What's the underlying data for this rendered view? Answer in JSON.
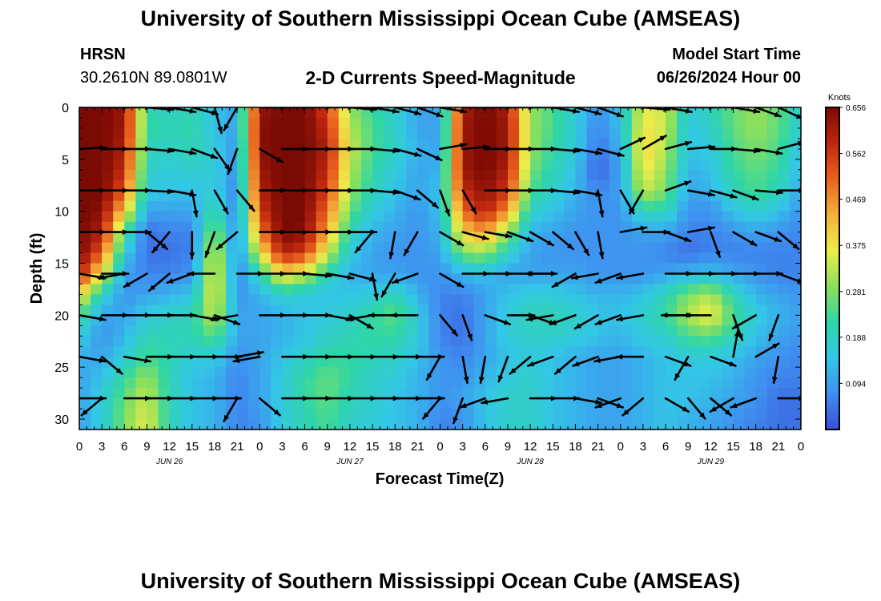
{
  "page_title": "University of Southern Mississippi Ocean Cube (AMSEAS)",
  "station": {
    "name": "HRSN",
    "coords": "30.2610N  89.0801W"
  },
  "plot_title": "2-D Currents Speed-Magnitude",
  "model": {
    "label": "Model Start Time",
    "start": "06/26/2024 Hour 00"
  },
  "footer_title": "University of Southern Mississippi Ocean Cube (AMSEAS)",
  "colors": {
    "speed_scale": [
      "#3a4fd8",
      "#3f8ff0",
      "#33c7e6",
      "#2fd6a6",
      "#8de05a",
      "#ecec4a",
      "#f4b23c",
      "#e8621e",
      "#c02810",
      "#7a0a04"
    ],
    "arrow": "#000000",
    "frame": "#000000"
  },
  "chart_data": {
    "type": "heatmap",
    "title": "2-D Currents Speed-Magnitude",
    "xlabel": "Forecast Time(Z)",
    "ylabel": "Depth (ft)",
    "units": "Knots",
    "x_range_hours": [
      0,
      96
    ],
    "ylim": [
      0,
      31
    ],
    "y_ticks": [
      0,
      5,
      10,
      15,
      20,
      25,
      30
    ],
    "x_tick_hours": [
      0,
      3,
      6,
      9,
      12,
      15,
      18,
      21,
      24,
      27,
      30,
      33,
      36,
      39,
      42,
      45,
      48,
      51,
      54,
      57,
      60,
      63,
      66,
      69,
      72,
      75,
      78,
      81,
      84,
      87,
      90,
      93,
      96
    ],
    "x_tick_labels": [
      "0",
      "3",
      "6",
      "9",
      "12",
      "15",
      "18",
      "21",
      "0",
      "3",
      "6",
      "9",
      "12",
      "15",
      "18",
      "21",
      "0",
      "3",
      "6",
      "9",
      "12",
      "15",
      "18",
      "21",
      "0",
      "3",
      "6",
      "9",
      "12",
      "15",
      "18",
      "21",
      "0"
    ],
    "day_labels": [
      {
        "hour": 12,
        "text": "JUN 26"
      },
      {
        "hour": 36,
        "text": "JUN 27"
      },
      {
        "hour": 60,
        "text": "JUN 28"
      },
      {
        "hour": 84,
        "text": "JUN 29"
      }
    ],
    "colorbar": {
      "label": "Knots",
      "min": 0.0,
      "max": 0.656,
      "ticks": [
        0.656,
        0.562,
        0.469,
        0.375,
        0.281,
        0.188,
        0.094
      ]
    },
    "depths": [
      0,
      2,
      4,
      6,
      8,
      10,
      12,
      14,
      16,
      18,
      20,
      22,
      24,
      26,
      28,
      30,
      31
    ],
    "hours": [
      0,
      3,
      6,
      9,
      12,
      15,
      18,
      21,
      24,
      27,
      30,
      33,
      36,
      39,
      42,
      45,
      48,
      51,
      54,
      57,
      60,
      63,
      66,
      69,
      72,
      75,
      78,
      81,
      84,
      87,
      90,
      93,
      96
    ],
    "speed": [
      [
        0.66,
        0.66,
        0.62,
        0.22,
        0.18,
        0.2,
        0.14,
        0.1,
        0.62,
        0.66,
        0.66,
        0.55,
        0.3,
        0.22,
        0.18,
        0.1,
        0.1,
        0.6,
        0.66,
        0.6,
        0.3,
        0.24,
        0.16,
        0.08,
        0.14,
        0.36,
        0.34,
        0.16,
        0.2,
        0.26,
        0.3,
        0.26,
        0.16
      ],
      [
        0.66,
        0.66,
        0.62,
        0.22,
        0.2,
        0.22,
        0.14,
        0.1,
        0.64,
        0.66,
        0.66,
        0.58,
        0.32,
        0.24,
        0.18,
        0.1,
        0.1,
        0.62,
        0.66,
        0.62,
        0.3,
        0.24,
        0.16,
        0.06,
        0.14,
        0.38,
        0.34,
        0.14,
        0.18,
        0.26,
        0.3,
        0.26,
        0.16
      ],
      [
        0.66,
        0.66,
        0.6,
        0.2,
        0.18,
        0.2,
        0.16,
        0.08,
        0.64,
        0.66,
        0.66,
        0.6,
        0.34,
        0.24,
        0.18,
        0.12,
        0.1,
        0.62,
        0.66,
        0.62,
        0.3,
        0.22,
        0.16,
        0.04,
        0.12,
        0.4,
        0.32,
        0.14,
        0.16,
        0.24,
        0.28,
        0.24,
        0.14
      ],
      [
        0.66,
        0.66,
        0.58,
        0.18,
        0.16,
        0.18,
        0.16,
        0.08,
        0.62,
        0.66,
        0.66,
        0.58,
        0.32,
        0.22,
        0.16,
        0.1,
        0.12,
        0.62,
        0.66,
        0.6,
        0.28,
        0.2,
        0.14,
        0.02,
        0.1,
        0.38,
        0.3,
        0.12,
        0.14,
        0.22,
        0.26,
        0.22,
        0.12
      ],
      [
        0.66,
        0.66,
        0.52,
        0.16,
        0.14,
        0.14,
        0.16,
        0.06,
        0.6,
        0.66,
        0.66,
        0.55,
        0.3,
        0.2,
        0.14,
        0.1,
        0.14,
        0.58,
        0.64,
        0.56,
        0.24,
        0.18,
        0.12,
        0.06,
        0.1,
        0.34,
        0.28,
        0.1,
        0.12,
        0.2,
        0.24,
        0.2,
        0.1
      ],
      [
        0.66,
        0.64,
        0.4,
        0.1,
        0.1,
        0.1,
        0.22,
        0.06,
        0.56,
        0.66,
        0.66,
        0.5,
        0.26,
        0.16,
        0.12,
        0.08,
        0.14,
        0.5,
        0.6,
        0.46,
        0.18,
        0.14,
        0.1,
        0.08,
        0.08,
        0.2,
        0.2,
        0.08,
        0.08,
        0.14,
        0.18,
        0.14,
        0.08
      ],
      [
        0.66,
        0.6,
        0.24,
        0.04,
        0.06,
        0.06,
        0.3,
        0.06,
        0.48,
        0.66,
        0.64,
        0.44,
        0.2,
        0.12,
        0.1,
        0.08,
        0.12,
        0.4,
        0.46,
        0.3,
        0.12,
        0.1,
        0.08,
        0.08,
        0.08,
        0.1,
        0.1,
        0.06,
        0.06,
        0.08,
        0.1,
        0.08,
        0.06
      ],
      [
        0.66,
        0.52,
        0.16,
        0.04,
        0.04,
        0.06,
        0.36,
        0.06,
        0.36,
        0.6,
        0.56,
        0.34,
        0.16,
        0.1,
        0.08,
        0.08,
        0.1,
        0.28,
        0.3,
        0.18,
        0.1,
        0.08,
        0.08,
        0.08,
        0.08,
        0.08,
        0.06,
        0.04,
        0.06,
        0.06,
        0.06,
        0.06,
        0.06
      ],
      [
        0.6,
        0.36,
        0.1,
        0.06,
        0.06,
        0.08,
        0.38,
        0.06,
        0.2,
        0.4,
        0.34,
        0.2,
        0.12,
        0.1,
        0.1,
        0.08,
        0.08,
        0.12,
        0.14,
        0.1,
        0.1,
        0.1,
        0.1,
        0.08,
        0.08,
        0.08,
        0.1,
        0.12,
        0.14,
        0.1,
        0.08,
        0.06,
        0.06
      ],
      [
        0.4,
        0.18,
        0.08,
        0.1,
        0.12,
        0.14,
        0.38,
        0.08,
        0.12,
        0.18,
        0.16,
        0.14,
        0.14,
        0.16,
        0.2,
        0.12,
        0.06,
        0.06,
        0.1,
        0.14,
        0.16,
        0.16,
        0.14,
        0.12,
        0.12,
        0.14,
        0.2,
        0.28,
        0.32,
        0.2,
        0.12,
        0.1,
        0.08
      ],
      [
        0.24,
        0.1,
        0.1,
        0.16,
        0.18,
        0.2,
        0.34,
        0.1,
        0.1,
        0.12,
        0.14,
        0.16,
        0.18,
        0.22,
        0.26,
        0.16,
        0.06,
        0.04,
        0.1,
        0.16,
        0.2,
        0.2,
        0.18,
        0.14,
        0.14,
        0.18,
        0.22,
        0.32,
        0.38,
        0.24,
        0.16,
        0.12,
        0.1
      ],
      [
        0.16,
        0.08,
        0.12,
        0.2,
        0.2,
        0.2,
        0.26,
        0.1,
        0.1,
        0.12,
        0.14,
        0.18,
        0.2,
        0.22,
        0.22,
        0.16,
        0.06,
        0.04,
        0.1,
        0.16,
        0.18,
        0.18,
        0.16,
        0.14,
        0.12,
        0.16,
        0.18,
        0.24,
        0.26,
        0.2,
        0.14,
        0.1,
        0.08
      ],
      [
        0.12,
        0.1,
        0.16,
        0.24,
        0.2,
        0.16,
        0.16,
        0.08,
        0.1,
        0.14,
        0.18,
        0.22,
        0.22,
        0.2,
        0.18,
        0.14,
        0.08,
        0.06,
        0.1,
        0.14,
        0.16,
        0.14,
        0.12,
        0.1,
        0.1,
        0.12,
        0.14,
        0.16,
        0.16,
        0.14,
        0.1,
        0.08,
        0.06
      ],
      [
        0.1,
        0.14,
        0.22,
        0.3,
        0.2,
        0.14,
        0.12,
        0.06,
        0.1,
        0.16,
        0.22,
        0.26,
        0.22,
        0.18,
        0.16,
        0.12,
        0.08,
        0.08,
        0.12,
        0.16,
        0.18,
        0.14,
        0.12,
        0.1,
        0.1,
        0.12,
        0.14,
        0.14,
        0.14,
        0.12,
        0.08,
        0.06,
        0.06
      ],
      [
        0.1,
        0.16,
        0.26,
        0.34,
        0.2,
        0.14,
        0.12,
        0.06,
        0.1,
        0.16,
        0.22,
        0.26,
        0.2,
        0.18,
        0.14,
        0.12,
        0.08,
        0.1,
        0.14,
        0.18,
        0.18,
        0.14,
        0.12,
        0.1,
        0.1,
        0.12,
        0.14,
        0.14,
        0.12,
        0.1,
        0.08,
        0.04,
        0.04
      ],
      [
        0.1,
        0.16,
        0.28,
        0.36,
        0.2,
        0.14,
        0.12,
        0.06,
        0.08,
        0.16,
        0.2,
        0.24,
        0.18,
        0.16,
        0.14,
        0.12,
        0.06,
        0.08,
        0.14,
        0.18,
        0.18,
        0.14,
        0.12,
        0.1,
        0.1,
        0.12,
        0.14,
        0.12,
        0.1,
        0.08,
        0.06,
        0.04,
        0.04
      ],
      [
        0.1,
        0.16,
        0.28,
        0.36,
        0.2,
        0.14,
        0.12,
        0.06,
        0.08,
        0.16,
        0.2,
        0.24,
        0.18,
        0.16,
        0.14,
        0.12,
        0.06,
        0.08,
        0.14,
        0.18,
        0.18,
        0.14,
        0.12,
        0.1,
        0.1,
        0.12,
        0.14,
        0.12,
        0.1,
        0.08,
        0.06,
        0.04,
        0.04
      ]
    ],
    "vector_depths": [
      0,
      4,
      8,
      12,
      16,
      20,
      24,
      28
    ],
    "vector_hours": [
      0,
      3,
      6,
      9,
      12,
      15,
      18,
      21,
      24,
      27,
      30,
      33,
      36,
      39,
      42,
      45,
      48,
      51,
      54,
      57,
      60,
      63,
      66,
      69,
      72,
      75,
      78,
      81,
      84,
      87,
      90,
      93
    ],
    "vector_dir_deg": [
      [
        -5,
        0,
        0,
        5,
        10,
        15,
        75,
        120,
        0,
        0,
        0,
        0,
        5,
        10,
        15,
        20,
        10,
        0,
        0,
        0,
        0,
        10,
        15,
        20,
        0,
        5,
        10,
        0,
        0,
        10,
        20,
        25
      ],
      [
        -3,
        0,
        0,
        5,
        10,
        20,
        55,
        110,
        30,
        0,
        0,
        0,
        0,
        5,
        15,
        25,
        -10,
        -5,
        0,
        0,
        0,
        5,
        10,
        15,
        -25,
        -30,
        -15,
        -5,
        0,
        5,
        10,
        -15
      ],
      [
        0,
        0,
        0,
        3,
        10,
        80,
        60,
        50,
        0,
        0,
        0,
        0,
        0,
        5,
        20,
        40,
        70,
        60,
        0,
        0,
        0,
        5,
        10,
        80,
        60,
        120,
        -20,
        10,
        15,
        20,
        5,
        0
      ],
      [
        0,
        0,
        0,
        40,
        130,
        90,
        110,
        140,
        0,
        0,
        0,
        0,
        0,
        130,
        100,
        120,
        30,
        15,
        10,
        20,
        30,
        40,
        60,
        80,
        -10,
        0,
        20,
        -10,
        70,
        30,
        20,
        40
      ],
      [
        10,
        0,
        170,
        150,
        140,
        160,
        180,
        0,
        0,
        0,
        5,
        10,
        15,
        80,
        120,
        160,
        30,
        0,
        0,
        0,
        0,
        180,
        150,
        170,
        160,
        170,
        0,
        0,
        0,
        0,
        0,
        20
      ],
      [
        10,
        0,
        0,
        0,
        0,
        10,
        20,
        170,
        0,
        0,
        0,
        10,
        30,
        170,
        180,
        180,
        50,
        70,
        20,
        0,
        20,
        170,
        160,
        150,
        160,
        170,
        0,
        180,
        180,
        70,
        150,
        110
      ],
      [
        10,
        40,
        10,
        0,
        0,
        0,
        0,
        -10,
        170,
        0,
        0,
        0,
        0,
        0,
        0,
        0,
        120,
        80,
        100,
        110,
        140,
        160,
        140,
        160,
        170,
        180,
        20,
        120,
        20,
        -80,
        -30,
        100
      ],
      [
        0,
        140,
        0,
        0,
        0,
        0,
        0,
        120,
        40,
        0,
        0,
        0,
        0,
        0,
        0,
        0,
        130,
        110,
        160,
        170,
        0,
        0,
        10,
        20,
        160,
        140,
        30,
        50,
        40,
        150,
        160,
        0
      ]
    ]
  }
}
